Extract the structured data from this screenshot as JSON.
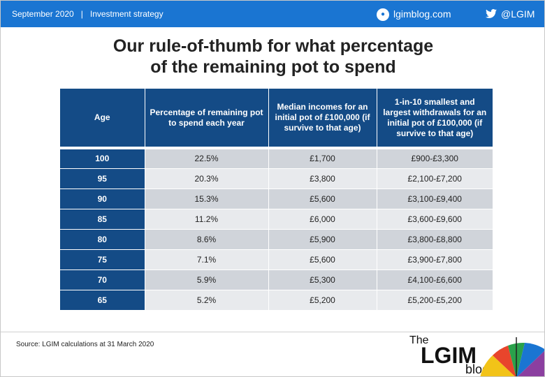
{
  "header": {
    "date": "September 2020",
    "separator": "|",
    "section": "Investment strategy",
    "site": "lgimblog.com",
    "twitter": "@LGIM"
  },
  "title_line1": "Our rule-of-thumb for what percentage",
  "title_line2": "of the remaining pot to spend",
  "table": {
    "headers": [
      "Age",
      "Percentage of remaining pot to spend each year",
      "Median incomes for an initial pot of £100,000 (if survive to that age)",
      "1-in-10 smallest and largest withdrawals  for an initial pot of £100,000 (if survive to that age)"
    ],
    "rows": [
      [
        "100",
        "22.5%",
        "£1,700",
        "£900-£3,300"
      ],
      [
        "95",
        "20.3%",
        "£3,800",
        "£2,100-£7,200"
      ],
      [
        "90",
        "15.3%",
        "£5,600",
        "£3,100-£9,400"
      ],
      [
        "85",
        "11.2%",
        "£6,000",
        "£3,600-£9,600"
      ],
      [
        "80",
        "8.6%",
        "£5,900",
        "£3,800-£8,800"
      ],
      [
        "75",
        "7.1%",
        "£5,600",
        "£3,900-£7,800"
      ],
      [
        "70",
        "5.9%",
        "£5,300",
        "£4,100-£6,600"
      ],
      [
        "65",
        "5.2%",
        "£5,200",
        "£5,200-£5,200"
      ]
    ]
  },
  "source": "Source: LGIM calculations at 31 March 2020",
  "logo": {
    "the": "The",
    "name": "LGIM",
    "blog": "blog"
  },
  "colors": {
    "bar": "#1a75d2",
    "header": "#144b86",
    "row_dark": "#d0d4da",
    "row_light": "#e8eaed"
  },
  "icons": {
    "site": "globe-icon",
    "twitter": "twitter-bird-icon",
    "logo": "umbrella-icon"
  }
}
